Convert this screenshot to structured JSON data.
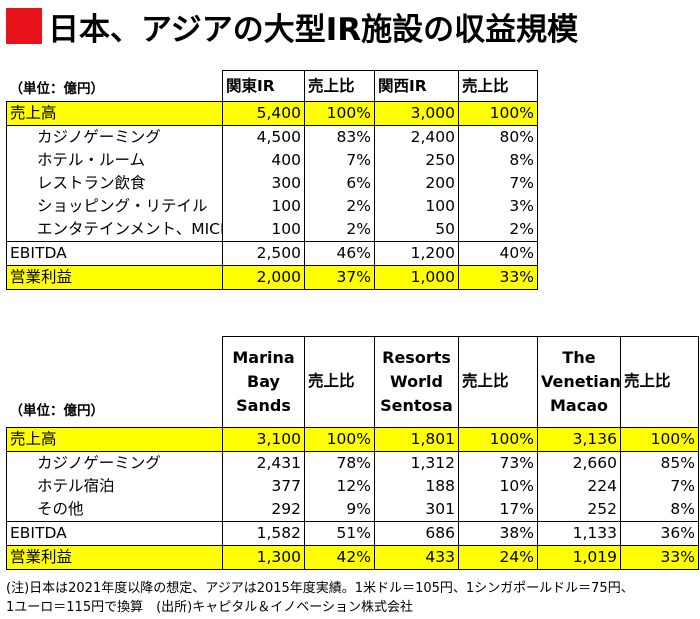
{
  "title": "日本、アジアの大型IR施設の収益規模",
  "unit": "（単位：億円）",
  "table1": {
    "headers": [
      "関東IR",
      "売上比",
      "関西IR",
      "売上比"
    ],
    "rows": [
      {
        "label": "売上高",
        "cells": [
          "5,400",
          "100%",
          "3,000",
          "100%"
        ]
      },
      {
        "label": "カジノゲーミング",
        "cells": [
          "4,500",
          "83%",
          "2,400",
          "80%"
        ]
      },
      {
        "label": "ホテル・ルーム",
        "cells": [
          "400",
          "7%",
          "250",
          "8%"
        ]
      },
      {
        "label": "レストラン飲食",
        "cells": [
          "300",
          "6%",
          "200",
          "7%"
        ]
      },
      {
        "label": "ショッピング・リテイル",
        "cells": [
          "100",
          "2%",
          "100",
          "3%"
        ]
      },
      {
        "label": "エンタテインメント、MICE",
        "cells": [
          "100",
          "2%",
          "50",
          "2%"
        ]
      },
      {
        "label": "EBITDA",
        "cells": [
          "2,500",
          "46%",
          "1,200",
          "40%"
        ]
      },
      {
        "label": "営業利益",
        "cells": [
          "2,000",
          "37%",
          "1,000",
          "33%"
        ]
      }
    ]
  },
  "table2": {
    "headers": [
      "Marina Bay Sands",
      "売上比",
      "Resorts World Sentosa",
      "売上比",
      "The Venetian Macao",
      "売上比"
    ],
    "rows": [
      {
        "label": "売上高",
        "cells": [
          "3,100",
          "100%",
          "1,801",
          "100%",
          "3,136",
          "100%"
        ]
      },
      {
        "label": "カジノゲーミング",
        "cells": [
          "2,431",
          "78%",
          "1,312",
          "73%",
          "2,660",
          "85%"
        ]
      },
      {
        "label": "ホテル宿泊",
        "cells": [
          "377",
          "12%",
          "188",
          "10%",
          "224",
          "7%"
        ]
      },
      {
        "label": "その他",
        "cells": [
          "292",
          "9%",
          "301",
          "17%",
          "252",
          "8%"
        ]
      },
      {
        "label": "EBITDA",
        "cells": [
          "1,582",
          "51%",
          "686",
          "38%",
          "1,133",
          "36%"
        ]
      },
      {
        "label": "営業利益",
        "cells": [
          "1,300",
          "42%",
          "433",
          "24%",
          "1,019",
          "33%"
        ]
      }
    ]
  },
  "note": {
    "line1": "(注)日本は2021年度以降の想定、アジアは2015年度実績。1米ドル＝105円、1シンガポールドル＝75円、",
    "line2": "1ユーロ＝115円で換算　(出所)キャピタル＆イノベーション株式会社"
  },
  "colors": {
    "highlight": "#ffff00",
    "title_square": "#e8141b"
  }
}
